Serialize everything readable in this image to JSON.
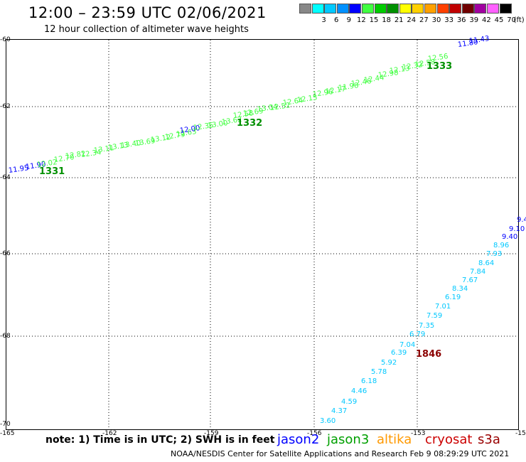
{
  "header": {
    "title": "12:00 – 23:59 UTC 02/06/2021",
    "subtitle": "12 hour collection of altimeter wave heights"
  },
  "legend": {
    "unit_label": "(ft)",
    "entries": [
      {
        "label": "",
        "color": "#888888"
      },
      {
        "label": "3",
        "color": "#00ffff"
      },
      {
        "label": "6",
        "color": "#00c8ff"
      },
      {
        "label": "9",
        "color": "#0090ff"
      },
      {
        "label": "12",
        "color": "#0000ff"
      },
      {
        "label": "15",
        "color": "#40ff40"
      },
      {
        "label": "18",
        "color": "#00cc00"
      },
      {
        "label": "21",
        "color": "#009000"
      },
      {
        "label": "24",
        "color": "#ffff00"
      },
      {
        "label": "27",
        "color": "#ffd000"
      },
      {
        "label": "30",
        "color": "#ffa000"
      },
      {
        "label": "33",
        "color": "#ff4000"
      },
      {
        "label": "36",
        "color": "#c00000"
      },
      {
        "label": "39",
        "color": "#700000"
      },
      {
        "label": "42",
        "color": "#a000a0"
      },
      {
        "label": "45",
        "color": "#ff60ff"
      },
      {
        "label": "70",
        "color": "#000000"
      }
    ]
  },
  "axes": {
    "y_labels": [
      "-60",
      "-62",
      "-64",
      "-66",
      "-68",
      "-70"
    ],
    "x_labels": [
      "-165",
      "-162",
      "-159",
      "-156",
      "-153",
      "-15"
    ]
  },
  "footer": {
    "note": "note: 1) Time is in UTC; 2) SWH is in feet",
    "satellites": [
      {
        "name": "jason2",
        "color": "#0000ff"
      },
      {
        "name": "jason3",
        "color": "#00a000"
      },
      {
        "name": "altika",
        "color": "#ff9900"
      },
      {
        "name": "cryosat",
        "color": "#cc0000"
      },
      {
        "name": "s3a",
        "color": "#990000"
      }
    ],
    "credit": "NOAA/NESDIS Center for Satellite Applications and Research    Feb  9 08:29:29 UTC 2021"
  },
  "pass_labels": [
    {
      "text": "1331",
      "color": "#009000"
    },
    {
      "text": "1332",
      "color": "#009000"
    },
    {
      "text": "1333",
      "color": "#009000"
    },
    {
      "text": "1846",
      "color": "#8b0000"
    }
  ],
  "track_north_labels": [
    {
      "text": "11.95",
      "color": "#0000ff"
    },
    {
      "text": "11.90",
      "color": "#0000ff"
    },
    {
      "text": "12.02",
      "color": "#40ff40"
    },
    {
      "text": "12.70",
      "color": "#40ff40"
    },
    {
      "text": "12.82",
      "color": "#40ff40"
    },
    {
      "text": "12.34",
      "color": "#40ff40"
    },
    {
      "text": "13.11",
      "color": "#40ff40"
    },
    {
      "text": "13.13",
      "color": "#40ff40"
    },
    {
      "text": "13.40",
      "color": "#40ff40"
    },
    {
      "text": "13.69",
      "color": "#40ff40"
    },
    {
      "text": "13.12",
      "color": "#40ff40"
    },
    {
      "text": "12.79",
      "color": "#40ff40"
    },
    {
      "text": "12.63",
      "color": "#40ff40"
    },
    {
      "text": "12.00",
      "color": "#0000ff"
    },
    {
      "text": "12.35",
      "color": "#40ff40"
    },
    {
      "text": "13.00",
      "color": "#40ff40"
    },
    {
      "text": "13.62",
      "color": "#40ff40"
    },
    {
      "text": "12.58",
      "color": "#40ff40"
    },
    {
      "text": "12.69",
      "color": "#40ff40"
    },
    {
      "text": "13.04",
      "color": "#40ff40"
    },
    {
      "text": "12.52",
      "color": "#40ff40"
    },
    {
      "text": "12.64",
      "color": "#40ff40"
    },
    {
      "text": "12.15",
      "color": "#40ff40"
    },
    {
      "text": "12.96",
      "color": "#40ff40"
    },
    {
      "text": "12.17",
      "color": "#40ff40"
    },
    {
      "text": "11.98",
      "color": "#40ff40"
    },
    {
      "text": "12.46",
      "color": "#40ff40"
    },
    {
      "text": "12.44",
      "color": "#40ff40"
    },
    {
      "text": "12.98",
      "color": "#40ff40"
    },
    {
      "text": "12.13",
      "color": "#40ff40"
    },
    {
      "text": "12.32",
      "color": "#40ff40"
    },
    {
      "text": "12.58",
      "color": "#40ff40"
    },
    {
      "text": "12.56",
      "color": "#40ff40"
    },
    {
      "text": "11.80",
      "color": "#0000ff"
    },
    {
      "text": "11.43",
      "color": "#0000ff"
    }
  ],
  "track_south_labels": [
    {
      "text": "3.60",
      "color": "#00c8ff"
    },
    {
      "text": "4.37",
      "color": "#00c8ff"
    },
    {
      "text": "4.59",
      "color": "#00c8ff"
    },
    {
      "text": "4.46",
      "color": "#00c8ff"
    },
    {
      "text": "6.18",
      "color": "#00c8ff"
    },
    {
      "text": "5.78",
      "color": "#00c8ff"
    },
    {
      "text": "5.92",
      "color": "#00c8ff"
    },
    {
      "text": "6.39",
      "color": "#00c8ff"
    },
    {
      "text": "7.04",
      "color": "#00c8ff"
    },
    {
      "text": "6.79",
      "color": "#00c8ff"
    },
    {
      "text": "7.35",
      "color": "#00c8ff"
    },
    {
      "text": "7.59",
      "color": "#00c8ff"
    },
    {
      "text": "7.01",
      "color": "#00c8ff"
    },
    {
      "text": "6.19",
      "color": "#00c8ff"
    },
    {
      "text": "8.34",
      "color": "#00c8ff"
    },
    {
      "text": "7.67",
      "color": "#00c8ff"
    },
    {
      "text": "7.84",
      "color": "#00c8ff"
    },
    {
      "text": "8.64",
      "color": "#00c8ff"
    },
    {
      "text": "7.93",
      "color": "#00c8ff"
    },
    {
      "text": "8.96",
      "color": "#00c8ff"
    },
    {
      "text": "9.40",
      "color": "#0000ff"
    },
    {
      "text": "9.10",
      "color": "#0000ff"
    },
    {
      "text": "9.4",
      "color": "#0000ff"
    }
  ]
}
